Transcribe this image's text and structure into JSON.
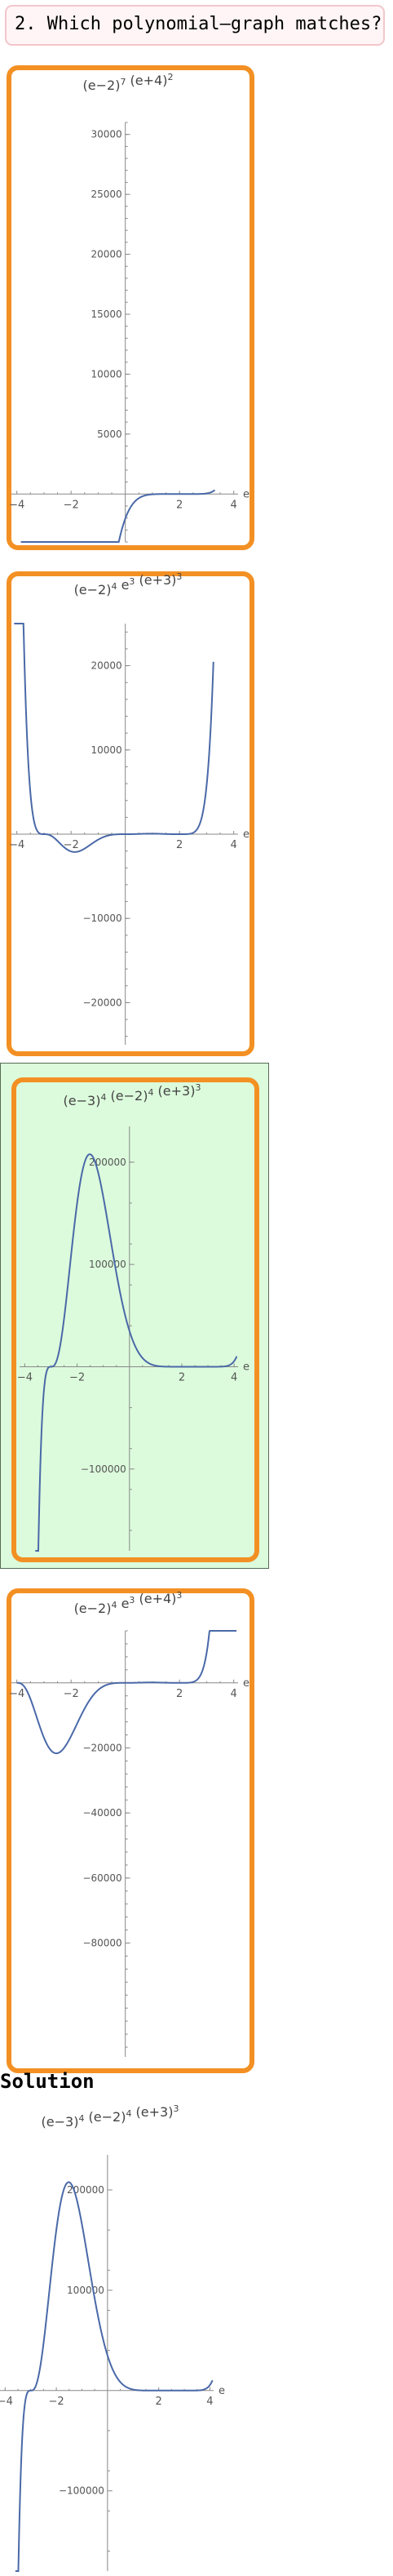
{
  "question": "2. Which polynomial–graph matches?",
  "solution_label": "Solution",
  "chart_data": [
    {
      "type": "line",
      "title": "(e−2)^7 (e+4)^2",
      "title_parts": {
        "a": "(e−2)",
        "a_exp": "7",
        "b": " (e+4)",
        "b_exp": "2"
      },
      "xlabel": "e",
      "xlim": [
        -4.2,
        4.4
      ],
      "ylim": [
        -4000,
        31000
      ],
      "xticks": [
        -4,
        -2,
        2,
        4
      ],
      "yticks": [
        5000,
        10000,
        15000,
        20000,
        25000,
        30000
      ],
      "ytick_labels": [
        "5000",
        "10000",
        "15000",
        "20000",
        "25000",
        "30000"
      ],
      "series": [
        {
          "formula": "(e-2)^7*(e+4)^2",
          "x_range": [
            -3.85,
            3.3
          ]
        }
      ]
    },
    {
      "type": "line",
      "title": "(e−2)^4 e^3 (e+3)^3",
      "title_parts": {
        "a": "(e−2)",
        "a_exp": "4",
        "b": " e",
        "b_exp": "3",
        "c": " (e+3)",
        "c_exp": "3"
      },
      "xlabel": "e",
      "xlim": [
        -4.2,
        4.4
      ],
      "ylim": [
        -25000,
        25000
      ],
      "xticks": [
        -4,
        -2,
        2,
        4
      ],
      "yticks": [
        -20000,
        -10000,
        10000,
        20000
      ],
      "ytick_labels": [
        "−20000",
        "−10000",
        "10000",
        "20000"
      ],
      "series": [
        {
          "formula": "(e-2)^4*e^3*(e+3)^3",
          "x_range": [
            -4.1,
            3.25
          ]
        }
      ]
    },
    {
      "type": "line",
      "title": "(e−3)^4 (e−2)^4 (e+3)^3",
      "title_parts": {
        "a": "(e−3)",
        "a_exp": "4",
        "b": " (e−2)",
        "b_exp": "4",
        "c": " (e+3)",
        "c_exp": "3"
      },
      "xlabel": "e",
      "xlim": [
        -4.2,
        4.4
      ],
      "ylim": [
        -180000,
        235000
      ],
      "xticks": [
        -4,
        -2,
        2,
        4
      ],
      "yticks": [
        -100000,
        100000,
        200000
      ],
      "ytick_labels": [
        "−100000",
        "100000",
        "200000"
      ],
      "series": [
        {
          "formula": "(e-3)^4*(e-2)^4*(e+3)^3",
          "x_range": [
            -3.6,
            4.1
          ]
        }
      ]
    },
    {
      "type": "line",
      "title": "(e−2)^4 e^3 (e+4)^3",
      "title_parts": {
        "a": "(e−2)",
        "a_exp": "4",
        "b": " e",
        "b_exp": "3",
        "c": " (e+4)",
        "c_exp": "3"
      },
      "xlabel": "e",
      "xlim": [
        -4.2,
        4.4
      ],
      "ylim": [
        -115000,
        16000
      ],
      "xticks": [
        -4,
        -2,
        2,
        4
      ],
      "yticks": [
        -80000,
        -60000,
        -40000,
        -20000
      ],
      "ytick_labels": [
        "−80000",
        "−60000",
        "−40000",
        "−20000"
      ],
      "series": [
        {
          "formula": "(e-2)^4*e^3*(e+4)^3",
          "x_range": [
            -4.0,
            4.1
          ]
        }
      ]
    },
    {
      "type": "line",
      "title": "(e−3)^4 (e−2)^4 (e+3)^3",
      "title_parts": {
        "a": "(e−3)",
        "a_exp": "4",
        "b": " (e−2)",
        "b_exp": "4",
        "c": " (e+3)",
        "c_exp": "3"
      },
      "xlabel": "e",
      "xlim": [
        -4.2,
        4.4
      ],
      "ylim": [
        -180000,
        235000
      ],
      "xticks": [
        -4,
        -2,
        2,
        4
      ],
      "yticks": [
        -100000,
        100000,
        200000
      ],
      "ytick_labels": [
        "−100000",
        "100000",
        "200000"
      ],
      "series": [
        {
          "formula": "(e-3)^4*(e-2)^4*(e+3)^3",
          "x_range": [
            -3.6,
            4.1
          ]
        }
      ]
    }
  ]
}
